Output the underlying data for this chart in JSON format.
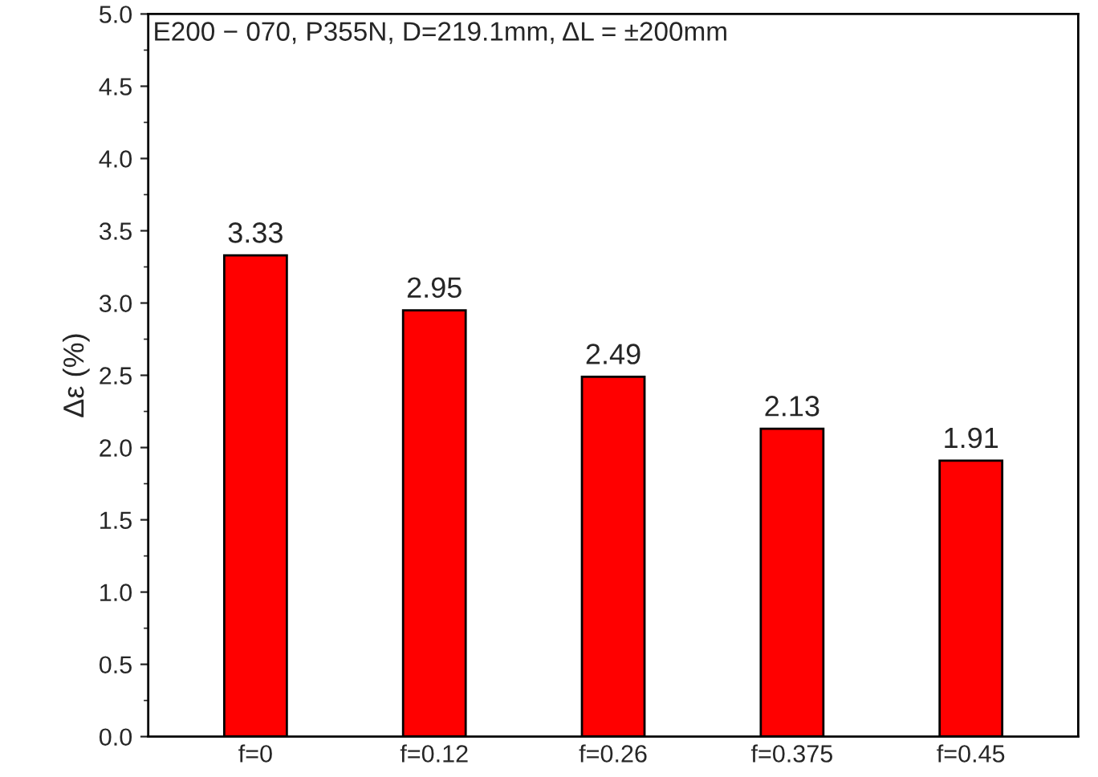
{
  "chart_data": {
    "type": "bar",
    "title": "E200 − 070, P355N, D=219.1mm, ΔL = ±200mm",
    "ylabel": "Δε (%)",
    "categories": [
      "f=0",
      "f=0.12",
      "f=0.26",
      "f=0.375",
      "f=0.45"
    ],
    "values": [
      3.33,
      2.95,
      2.49,
      2.13,
      1.91
    ],
    "color": "#ff0000",
    "ylim": [
      0,
      5
    ],
    "yticks": [
      {
        "value": 0,
        "label": "0.0"
      },
      {
        "value": 0.5,
        "label": "0.5"
      },
      {
        "value": 1,
        "label": "1.0"
      },
      {
        "value": 1.5,
        "label": "1.5"
      },
      {
        "value": 2,
        "label": "2.0"
      },
      {
        "value": 2.5,
        "label": "2.5"
      },
      {
        "value": 3,
        "label": "3.0"
      },
      {
        "value": 3.5,
        "label": "3.5"
      },
      {
        "value": 4,
        "label": "4.0"
      },
      {
        "value": 4.5,
        "label": "4.5"
      },
      {
        "value": 5,
        "label": "5.0"
      }
    ],
    "data_labels": true,
    "grid": false,
    "legend": false
  }
}
